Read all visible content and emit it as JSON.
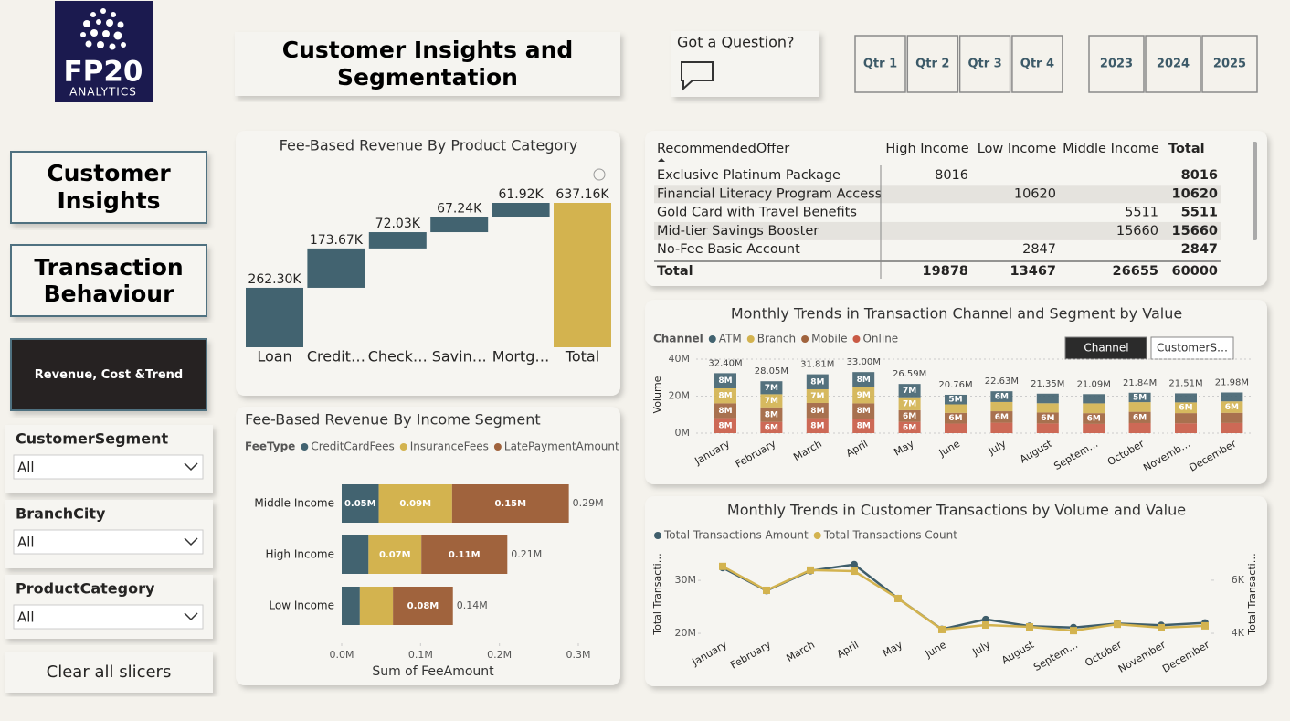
{
  "header": {
    "logo": "FP20",
    "logo_sub": "ANALYTICS",
    "title": "Customer Insights and Segmentation",
    "question": "Got a Question?"
  },
  "quarters": [
    "Qtr 1",
    "Qtr 2",
    "Qtr 3",
    "Qtr 4"
  ],
  "years": [
    "2023",
    "2024",
    "2025"
  ],
  "nav": [
    "Customer Insights",
    "Transaction Behaviour",
    "Revenue, Cost &Trend"
  ],
  "slicers": [
    {
      "label": "CustomerSegment",
      "value": "All"
    },
    {
      "label": "BranchCity",
      "value": "All"
    },
    {
      "label": "ProductCategory",
      "value": "All"
    }
  ],
  "clear": "Clear all slicers",
  "table": {
    "columns": [
      "RecommendedOffer",
      "High Income",
      "Low Income",
      "Middle Income",
      "Total"
    ],
    "rows": [
      [
        "Exclusive Platinum Package",
        8016,
        null,
        null,
        8016
      ],
      [
        "Financial Literacy Program Access",
        null,
        10620,
        null,
        10620
      ],
      [
        "Gold Card with Travel Benefits",
        null,
        null,
        5511,
        5511
      ],
      [
        "Mid-tier Savings Booster",
        null,
        null,
        15660,
        15660
      ],
      [
        "No-Fee Basic Account",
        null,
        2847,
        null,
        2847
      ]
    ],
    "total": [
      "Total",
      19878,
      13467,
      26655,
      60000
    ]
  },
  "chart_data": [
    {
      "type": "waterfall",
      "title": "Fee-Based Revenue By Product Category",
      "categories": [
        "Loan",
        "Credit…",
        "Check…",
        "Savin…",
        "Mortg…",
        "Total"
      ],
      "values": [
        262300,
        173670,
        72030,
        67240,
        61920,
        637160
      ],
      "value_labels": [
        "262.30K",
        "173.67K",
        "72.03K",
        "67.24K",
        "61.92K",
        "637.16K"
      ],
      "color": "#426370",
      "total_color": "#d3b34f"
    },
    {
      "type": "hbar_stacked",
      "title": "Fee-Based Revenue By Income Segment",
      "legend_title": "FeeType",
      "categories": [
        "Middle Income",
        "High Income",
        "Low Income"
      ],
      "series": [
        {
          "name": "CreditCardFees",
          "color": "#426370",
          "values": [
            47000,
            34000,
            23000
          ],
          "value_labels": [
            "0.05M",
            null,
            null
          ]
        },
        {
          "name": "InsuranceFees",
          "color": "#d3b34f",
          "values": [
            93000,
            67000,
            42000
          ],
          "value_labels": [
            "0.09M",
            "0.07M",
            null
          ]
        },
        {
          "name": "LatePaymentAmount",
          "color": "#a0633d",
          "values": [
            148000,
            109000,
            76000
          ],
          "value_labels": [
            "0.15M",
            "0.11M",
            "0.08M"
          ]
        }
      ],
      "totals": [
        288000,
        210000,
        141000
      ],
      "total_labels": [
        "0.29M",
        "0.21M",
        "0.14M"
      ],
      "xlim": [
        0,
        300000
      ],
      "xticks": [
        {
          "value": 0,
          "label": "0.0M"
        },
        {
          "value": 100000,
          "label": "0.1M"
        },
        {
          "value": 200000,
          "label": "0.2M"
        },
        {
          "value": 300000,
          "label": "0.3M"
        }
      ],
      "xlabel": "Sum of FeeAmount"
    },
    {
      "type": "ribbon",
      "title": "Monthly Trends in Transaction Channel and Segment by Value",
      "legend_title": "Channel",
      "buttons": [
        "Channel",
        "CustomerS…"
      ],
      "categories": [
        "January",
        "February",
        "March",
        "April",
        "May",
        "June",
        "July",
        "August",
        "Septem…",
        "October",
        "Novemb…",
        "December"
      ],
      "series": [
        {
          "name": "ATM",
          "color": "#426370",
          "values": [
            8200000,
            7000000,
            8100000,
            8300000,
            7200000,
            5200000,
            5800000,
            5200000,
            5000000,
            5100000,
            4900000,
            4800000
          ],
          "value_labels": [
            "8M",
            "7M",
            "8M",
            "8M",
            "7M",
            "5M",
            "6M",
            null,
            null,
            "5M",
            null,
            null
          ]
        },
        {
          "name": "Branch",
          "color": "#d3b34f",
          "values": [
            8100000,
            7100000,
            7400000,
            8600000,
            7000000,
            4600000,
            5000000,
            5000000,
            5300000,
            5200000,
            5800000,
            6200000
          ],
          "value_labels": [
            "8M",
            "7M",
            "7M",
            "9M",
            "7M",
            null,
            null,
            null,
            null,
            null,
            "6M",
            "6M"
          ]
        },
        {
          "name": "Mobile",
          "color": "#a0633d",
          "values": [
            8000000,
            7900000,
            8200000,
            8200000,
            6300000,
            5800000,
            6200000,
            5900000,
            5800000,
            6100000,
            5500000,
            5500000
          ],
          "value_labels": [
            "8M",
            "8M",
            "8M",
            "8M",
            "6M",
            "6M",
            "6M",
            "6M",
            "6M",
            "6M",
            null,
            null
          ]
        },
        {
          "name": "Online",
          "color": "#c95a45",
          "values": [
            8100000,
            6050000,
            8110000,
            7900000,
            6090000,
            5160000,
            5630000,
            5250000,
            4990000,
            5440000,
            5310000,
            5480000
          ],
          "value_labels": [
            "8M",
            "6M",
            "8M",
            "8M",
            "6M",
            null,
            null,
            null,
            null,
            null,
            null,
            null
          ]
        }
      ],
      "totals": [
        32400000,
        28050000,
        31810000,
        33000000,
        26590000,
        20760000,
        22630000,
        21350000,
        21090000,
        21840000,
        21510000,
        21980000
      ],
      "total_labels": [
        "32.40M",
        "28.05M",
        "31.81M",
        "33.00M",
        "26.59M",
        "20.76M",
        "22.63M",
        "21.35M",
        "21.09M",
        "21.84M",
        "21.51M",
        "21.98M"
      ],
      "ylim": [
        0,
        40000000
      ],
      "yticks": [
        {
          "value": 0,
          "label": "0M"
        },
        {
          "value": 20000000,
          "label": "20M"
        },
        {
          "value": 40000000,
          "label": "40M"
        }
      ],
      "ylabel": "Volume"
    },
    {
      "type": "line",
      "title": "Monthly Trends in Customer Transactions by Volume and Value",
      "categories": [
        "January",
        "February",
        "March",
        "April",
        "May",
        "June",
        "July",
        "August",
        "Septem…",
        "October",
        "November",
        "December"
      ],
      "series": [
        {
          "name": "Total Transactions Amount",
          "color": "#3f5e6b",
          "axis": "y",
          "values": [
            32400000,
            28050000,
            31810000,
            33000000,
            26590000,
            20760000,
            22630000,
            21350000,
            21090000,
            21840000,
            21510000,
            21980000
          ]
        },
        {
          "name": "Total Transactions Count",
          "color": "#d3b34f",
          "axis": "y2",
          "values": [
            6520,
            5620,
            6380,
            6340,
            5310,
            4140,
            4310,
            4240,
            4100,
            4340,
            4210,
            4280
          ]
        }
      ],
      "ylim": [
        18800000,
        35200000
      ],
      "yticks": [
        {
          "value": 20000000,
          "label": "20M"
        },
        {
          "value": 30000000,
          "label": "30M"
        }
      ],
      "y2lim": [
        3760,
        7030
      ],
      "y2ticks": [
        {
          "value": 4000,
          "label": "4K"
        },
        {
          "value": 6000,
          "label": "6K"
        }
      ],
      "ylabel": "Total Transacti…",
      "y2label": "Total Transacti…"
    }
  ]
}
